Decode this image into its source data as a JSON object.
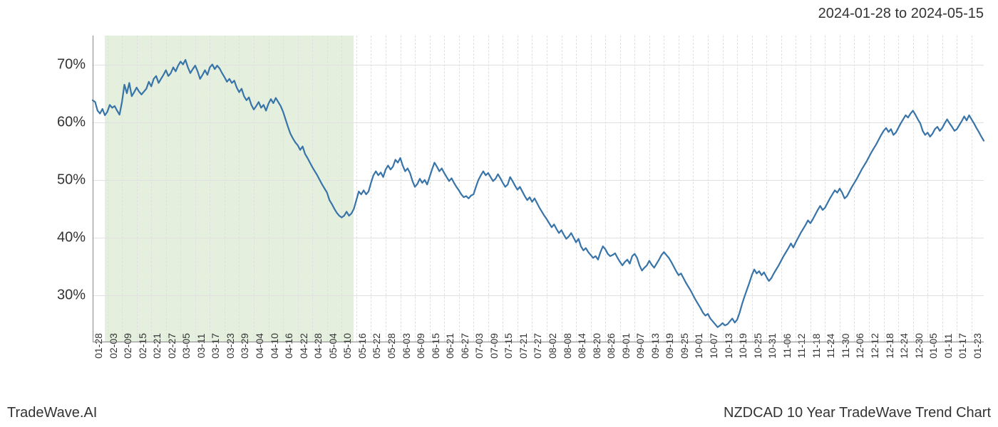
{
  "header": {
    "date_range": "2024-01-28 to 2024-05-15"
  },
  "footer": {
    "brand": "TradeWave.AI",
    "title": "NZDCAD 10 Year TradeWave Trend Chart"
  },
  "chart": {
    "type": "line",
    "background_color": "#ffffff",
    "grid_color": "#e0e0e0",
    "axis_color": "#888888",
    "line_color": "#3874a8",
    "line_width": 2.2,
    "highlight_band": {
      "color": "#d9e8d0",
      "opacity": 0.7,
      "x_start_index": 5,
      "x_end_index": 107
    },
    "y_axis": {
      "min": 22,
      "max": 75,
      "ticks": [
        30,
        40,
        50,
        60,
        70
      ],
      "tick_labels": [
        "30%",
        "40%",
        "50%",
        "60%",
        "70%"
      ],
      "label_fontsize": 20,
      "label_color": "#333333"
    },
    "x_axis": {
      "tick_every": 6,
      "tick_labels": [
        "01-28",
        "02-03",
        "02-09",
        "02-15",
        "02-21",
        "02-27",
        "03-05",
        "03-11",
        "03-17",
        "03-23",
        "03-29",
        "04-04",
        "04-10",
        "04-16",
        "04-22",
        "04-28",
        "05-04",
        "05-10",
        "05-16",
        "05-22",
        "05-28",
        "06-03",
        "06-09",
        "06-15",
        "06-21",
        "06-27",
        "07-03",
        "07-09",
        "07-15",
        "07-21",
        "07-27",
        "08-02",
        "08-08",
        "08-14",
        "08-20",
        "08-26",
        "09-01",
        "09-07",
        "09-13",
        "09-19",
        "09-25",
        "10-01",
        "10-07",
        "10-13",
        "10-19",
        "10-25",
        "10-31",
        "11-06",
        "11-12",
        "11-18",
        "11-24",
        "11-30",
        "12-06",
        "12-12",
        "12-18",
        "12-24",
        "12-30",
        "01-05",
        "01-11",
        "01-17",
        "01-23"
      ],
      "label_fontsize": 14,
      "label_color": "#333333"
    },
    "data": [
      63.8,
      63.5,
      62.0,
      61.5,
      62.3,
      61.2,
      61.8,
      63.0,
      62.5,
      62.8,
      62.0,
      61.3,
      63.5,
      66.5,
      65.0,
      66.8,
      64.5,
      65.2,
      66.0,
      65.3,
      64.8,
      65.3,
      65.8,
      67.0,
      66.2,
      67.5,
      68.0,
      66.8,
      67.5,
      68.2,
      69.0,
      68.0,
      68.5,
      69.5,
      68.8,
      69.8,
      70.5,
      70.0,
      70.8,
      69.5,
      68.5,
      69.2,
      69.8,
      68.8,
      67.5,
      68.2,
      69.0,
      68.2,
      69.5,
      70.0,
      69.2,
      69.8,
      69.3,
      68.5,
      67.8,
      67.0,
      67.5,
      66.8,
      67.2,
      66.0,
      65.2,
      65.8,
      64.5,
      63.8,
      64.3,
      63.0,
      62.2,
      62.8,
      63.5,
      62.5,
      63.0,
      62.0,
      63.2,
      64.0,
      63.3,
      64.2,
      63.5,
      62.8,
      61.8,
      60.5,
      59.2,
      58.0,
      57.2,
      56.5,
      56.0,
      55.2,
      55.8,
      54.5,
      53.8,
      53.0,
      52.2,
      51.5,
      50.8,
      50.0,
      49.2,
      48.5,
      47.8,
      46.5,
      45.8,
      45.0,
      44.3,
      43.8,
      43.5,
      43.8,
      44.5,
      43.8,
      44.2,
      45.0,
      46.5,
      48.0,
      47.5,
      48.2,
      47.5,
      48.0,
      49.5,
      50.8,
      51.5,
      50.8,
      51.3,
      50.5,
      51.8,
      52.5,
      51.8,
      52.3,
      53.5,
      53.0,
      53.8,
      52.5,
      51.5,
      52.0,
      51.2,
      49.8,
      48.8,
      49.3,
      50.2,
      49.5,
      50.0,
      49.2,
      50.5,
      51.8,
      53.0,
      52.3,
      51.5,
      52.0,
      51.2,
      50.5,
      49.8,
      50.3,
      49.5,
      48.8,
      48.2,
      47.5,
      47.0,
      47.2,
      46.8,
      47.3,
      47.5,
      48.8,
      50.0,
      50.8,
      51.5,
      50.8,
      51.2,
      50.5,
      49.8,
      50.2,
      51.0,
      50.3,
      49.5,
      48.8,
      49.2,
      50.5,
      49.8,
      49.0,
      48.3,
      48.8,
      48.0,
      47.2,
      46.5,
      47.0,
      46.2,
      46.8,
      46.0,
      45.2,
      44.5,
      43.8,
      43.2,
      42.5,
      41.8,
      42.3,
      41.5,
      40.8,
      41.3,
      40.5,
      39.8,
      40.2,
      40.8,
      40.0,
      39.2,
      39.8,
      38.5,
      37.8,
      38.2,
      37.5,
      37.0,
      36.5,
      36.8,
      36.2,
      37.5,
      38.5,
      38.0,
      37.2,
      36.8,
      37.0,
      37.3,
      36.5,
      35.8,
      35.2,
      35.8,
      36.2,
      35.5,
      36.8,
      37.2,
      36.5,
      35.2,
      34.3,
      34.8,
      35.2,
      36.0,
      35.3,
      34.8,
      35.5,
      36.2,
      37.0,
      37.5,
      37.0,
      36.5,
      35.8,
      35.0,
      34.2,
      33.5,
      33.8,
      33.0,
      32.2,
      31.5,
      30.8,
      30.0,
      29.2,
      28.5,
      27.8,
      27.0,
      26.5,
      26.8,
      26.0,
      25.5,
      25.0,
      24.5,
      24.8,
      25.2,
      24.8,
      25.0,
      25.5,
      26.0,
      25.3,
      25.8,
      27.0,
      28.5,
      29.8,
      31.0,
      32.2,
      33.5,
      34.5,
      33.8,
      34.2,
      33.5,
      34.0,
      33.2,
      32.5,
      33.0,
      33.8,
      34.5,
      35.2,
      36.0,
      36.8,
      37.5,
      38.2,
      39.0,
      38.3,
      39.2,
      40.0,
      40.8,
      41.5,
      42.2,
      43.0,
      42.5,
      43.2,
      44.0,
      44.8,
      45.5,
      44.8,
      45.2,
      46.0,
      46.8,
      47.5,
      48.2,
      47.8,
      48.5,
      47.8,
      46.8,
      47.2,
      48.0,
      48.8,
      49.5,
      50.2,
      51.0,
      51.8,
      52.5,
      53.2,
      54.0,
      54.8,
      55.5,
      56.2,
      57.0,
      57.8,
      58.5,
      59.0,
      58.3,
      58.8,
      57.8,
      58.2,
      59.0,
      59.8,
      60.5,
      61.2,
      60.8,
      61.5,
      62.0,
      61.3,
      60.5,
      59.8,
      58.5,
      57.8,
      58.2,
      57.5,
      58.0,
      58.8,
      59.2,
      58.5,
      59.0,
      59.8,
      60.5,
      59.8,
      59.2,
      58.5,
      58.8,
      59.5,
      60.2,
      61.0,
      60.3,
      61.2,
      60.5,
      59.8,
      59.0,
      58.3,
      57.5,
      56.8
    ]
  }
}
